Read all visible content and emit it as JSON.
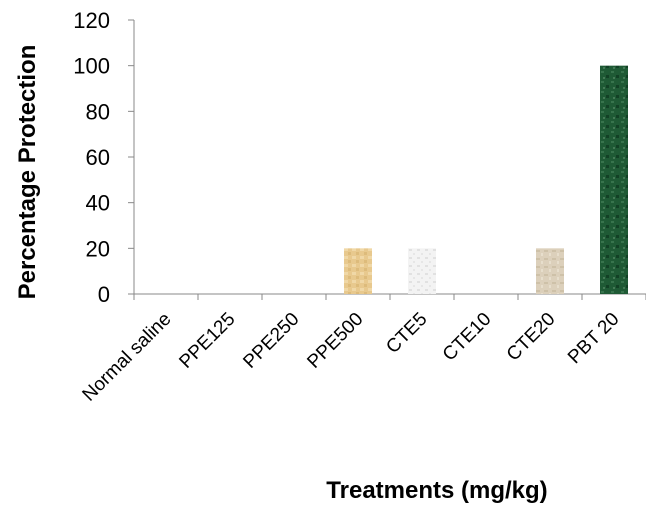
{
  "chart_data": {
    "type": "bar",
    "title": "",
    "xlabel": "Treatments (mg/kg)",
    "ylabel": "Percentage Protection",
    "categories": [
      "Normal saline",
      "PPE125",
      "PPE250",
      "PPE500",
      "CTE5",
      "CTE10",
      "CTE20",
      "PBT 20"
    ],
    "values": [
      0,
      0,
      0,
      20,
      20,
      0,
      20,
      100
    ],
    "bar_colors": [
      "#e8cfa0",
      "#e8cfa0",
      "#e8cfa0",
      "#e8cfa0",
      "#f1f1f1",
      "#f1f1f1",
      "#d9ccb7",
      "#1f5a35"
    ],
    "ylim": [
      0,
      120
    ],
    "yticks": [
      0,
      20,
      40,
      60,
      80,
      100,
      120
    ],
    "grid": false,
    "legend": "none"
  }
}
